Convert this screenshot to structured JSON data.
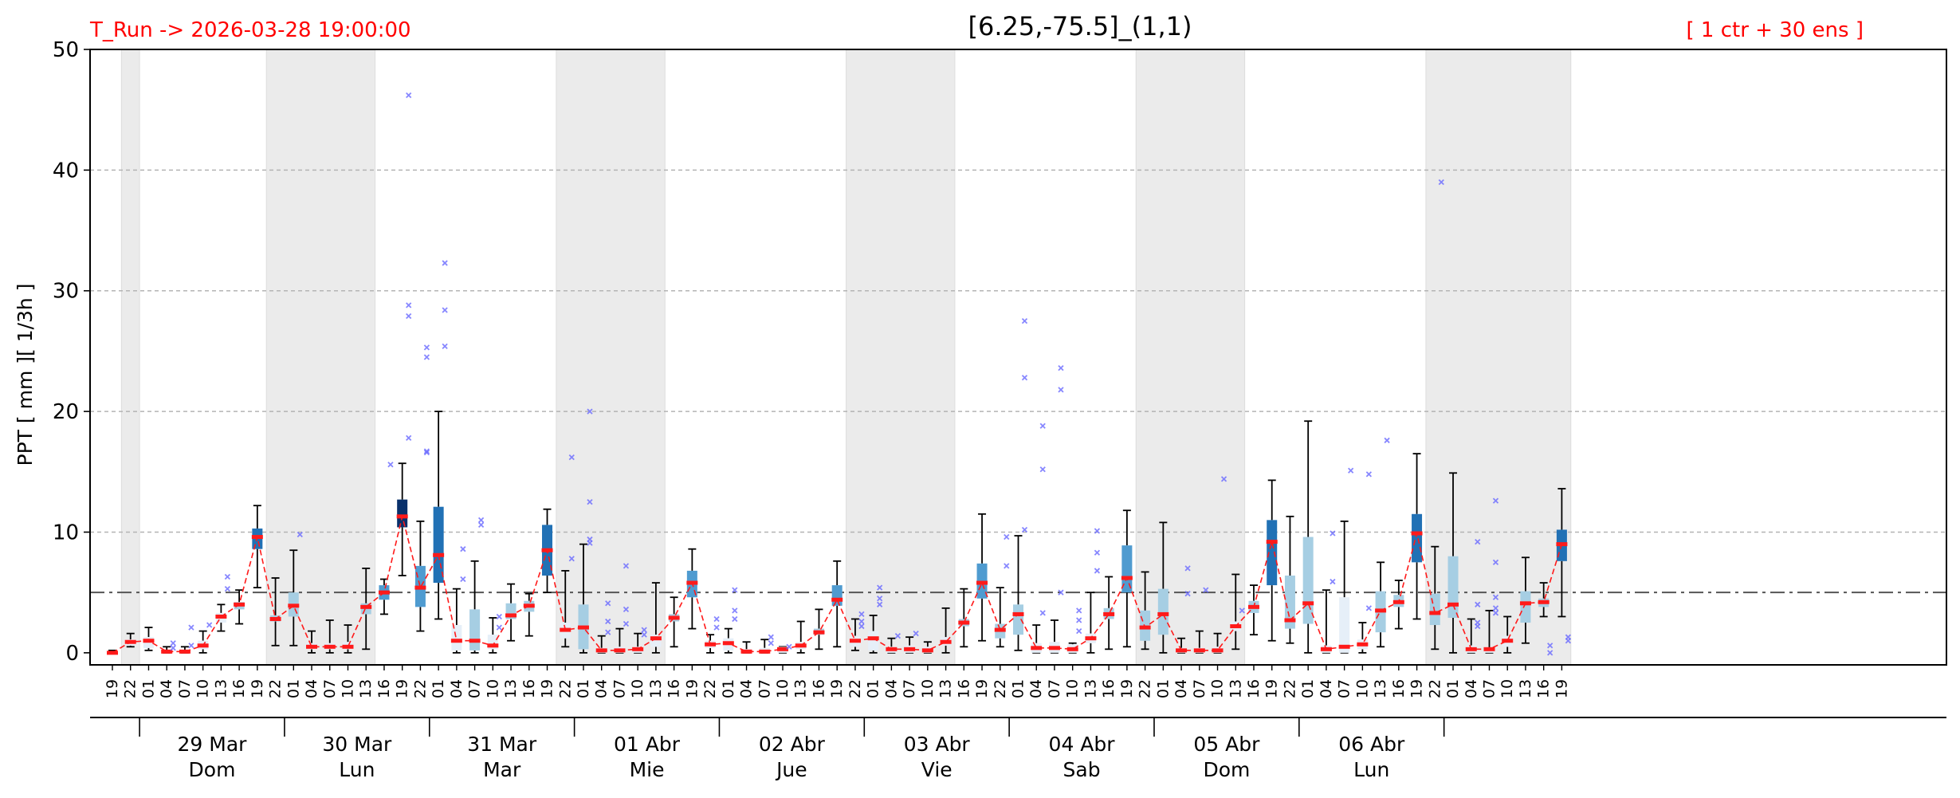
{
  "header": {
    "run_label": "T_Run -> 2026-03-28  19:00:00",
    "title": "[6.25,-75.5]_(1,1)",
    "ensemble_label": "[ 1 ctr + 30 ens ]"
  },
  "colors": {
    "red_text": "#ff0000",
    "median": "#ff1a1a",
    "night_band": "#ebebeb",
    "outlier": "#6a6aff",
    "box_very_light": "#e6eff8",
    "box_light": "#a6cee3",
    "box_medium": "#4f9bd0",
    "box_dark": "#2171b5",
    "box_darkest": "#08306b"
  },
  "chart_data": {
    "type": "box",
    "title": "[6.25,-75.5]_(1,1)",
    "ylabel": "PPT  [ mm ][ 1/3h ]",
    "xlabel": "",
    "ylim": [
      -1,
      50
    ],
    "yticks": [
      0,
      10,
      20,
      30,
      40,
      50
    ],
    "threshold": 5,
    "grid": "horizontal dashed",
    "x_hours": [
      "19",
      "22",
      "01",
      "04",
      "07",
      "10",
      "13",
      "16",
      "19",
      "22",
      "01",
      "04",
      "07",
      "10",
      "13",
      "16",
      "19",
      "22",
      "01",
      "04",
      "07",
      "10",
      "13",
      "16",
      "19",
      "22",
      "01",
      "04",
      "07",
      "10",
      "13",
      "16",
      "19",
      "22",
      "01",
      "04",
      "07",
      "10",
      "13",
      "16",
      "19",
      "22",
      "01",
      "04",
      "07",
      "10",
      "13",
      "16",
      "19",
      "22",
      "01",
      "04",
      "07",
      "10",
      "13",
      "16",
      "19",
      "22",
      "01",
      "04",
      "07",
      "10",
      "13",
      "16",
      "19",
      "22",
      "01",
      "04",
      "07",
      "10",
      "13",
      "16",
      "19",
      "22",
      "01",
      "04",
      "07",
      "10",
      "13",
      "16",
      "19"
    ],
    "days": [
      {
        "date": "29 Mar",
        "weekday": "Dom"
      },
      {
        "date": "30 Mar",
        "weekday": "Lun"
      },
      {
        "date": "31 Mar",
        "weekday": "Mar"
      },
      {
        "date": "01 Abr",
        "weekday": "Mie"
      },
      {
        "date": "02 Abr",
        "weekday": "Jue"
      },
      {
        "date": "03 Abr",
        "weekday": "Vie"
      },
      {
        "date": "04 Abr",
        "weekday": "Sab"
      },
      {
        "date": "05 Abr",
        "weekday": "Dom"
      },
      {
        "date": "06 Abr",
        "weekday": "Lun"
      }
    ],
    "median": [
      0,
      0.9,
      1.0,
      0.1,
      0.1,
      0.6,
      3.0,
      4.0,
      9.6,
      2.8,
      3.9,
      0.5,
      0.5,
      0.5,
      3.8,
      5.0,
      11.3,
      5.4,
      8.1,
      1.0,
      1.0,
      0.6,
      3.1,
      3.9,
      8.5,
      1.9,
      2.1,
      0.2,
      0.2,
      0.3,
      1.2,
      2.9,
      5.8,
      0.7,
      0.8,
      0.1,
      0.1,
      0.3,
      0.6,
      1.7,
      4.4,
      1.0,
      1.2,
      0.3,
      0.3,
      0.2,
      0.9,
      2.5,
      5.8,
      1.9,
      3.2,
      0.4,
      0.4,
      0.3,
      1.2,
      3.2,
      6.2,
      2.1,
      3.2,
      0.2,
      0.2,
      0.2,
      2.2,
      3.8,
      9.2,
      2.7,
      4.1,
      0.3,
      0.5,
      0.7,
      3.5,
      4.2,
      9.9,
      3.3,
      4.0,
      0.3,
      0.3,
      1.0,
      4.1,
      4.2,
      9.0
    ],
    "q1": [
      0,
      0.6,
      0.4,
      0,
      0,
      0.3,
      2.5,
      3.6,
      8.6,
      2.6,
      3.0,
      0.3,
      0.3,
      0.3,
      3.2,
      4.4,
      10.4,
      3.8,
      5.8,
      0.2,
      0.2,
      0.3,
      2.8,
      3.4,
      6.4,
      1.2,
      0.3,
      0,
      0,
      0,
      0.5,
      2.6,
      4.6,
      0.4,
      0.2,
      0,
      0,
      0,
      0.3,
      1.5,
      3.9,
      0.5,
      0.2,
      0,
      0,
      0,
      0.6,
      2.2,
      4.5,
      1.2,
      1.5,
      0,
      0,
      0,
      0.8,
      2.8,
      5.0,
      1.0,
      1.5,
      0,
      0,
      0,
      1.8,
      3.3,
      5.6,
      2.0,
      2.4,
      0,
      0,
      0.3,
      1.7,
      3.8,
      7.5,
      2.3,
      2.9,
      0,
      0,
      0.5,
      2.5,
      3.8,
      7.6
    ],
    "q3": [
      0.1,
      1.1,
      1.3,
      0.2,
      0.2,
      1.0,
      3.3,
      4.2,
      10.3,
      3.1,
      5.0,
      0.8,
      0.8,
      0.9,
      4.1,
      5.6,
      12.7,
      7.2,
      12.1,
      2.3,
      3.6,
      1.5,
      4.1,
      4.3,
      10.6,
      2.5,
      4.0,
      0.4,
      0.5,
      0.5,
      1.5,
      3.2,
      6.8,
      1.0,
      1.2,
      0.3,
      0.4,
      0.5,
      0.9,
      2.0,
      5.6,
      1.4,
      1.8,
      0.5,
      0.6,
      0.5,
      1.3,
      2.8,
      7.4,
      2.4,
      4.0,
      0.8,
      0.9,
      0.7,
      1.6,
      3.7,
      8.9,
      3.5,
      5.3,
      0.4,
      0.4,
      0.5,
      2.6,
      4.3,
      11.0,
      6.4,
      9.6,
      0.6,
      4.6,
      1.1,
      5.1,
      4.8,
      11.5,
      4.9,
      8.0,
      0.6,
      0.4,
      1.4,
      5.1,
      4.5,
      10.2
    ],
    "whisker_low": [
      0,
      0.5,
      0.2,
      0,
      0,
      0,
      1.8,
      2.4,
      5.4,
      0.6,
      0.6,
      0,
      0,
      0,
      0.3,
      3.2,
      6.4,
      1.8,
      2.8,
      0,
      0,
      0,
      1.0,
      1.4,
      5.0,
      0.5,
      0,
      0,
      0,
      0,
      0,
      0.5,
      2.0,
      0,
      0,
      0,
      0,
      0,
      0,
      0.3,
      0.5,
      0.2,
      0,
      0,
      0,
      0,
      0,
      0.5,
      1.0,
      0.5,
      0.2,
      0,
      0,
      0,
      0,
      0.3,
      0.5,
      0.3,
      0,
      0,
      0,
      0,
      0.3,
      1.5,
      1.0,
      0.8,
      0,
      0,
      0,
      0,
      0.5,
      2.0,
      2.8,
      0.3,
      0,
      0,
      0,
      0,
      0.8,
      3.0,
      3.0
    ],
    "whisker_high": [
      0.2,
      1.6,
      2.1,
      0.5,
      0.5,
      1.8,
      4.0,
      5.2,
      12.2,
      6.2,
      8.5,
      1.8,
      2.7,
      2.3,
      7.0,
      6.1,
      15.7,
      10.9,
      20.0,
      5.3,
      7.6,
      2.9,
      5.7,
      4.9,
      11.9,
      6.8,
      9.0,
      1.4,
      2.0,
      1.6,
      5.8,
      4.6,
      8.6,
      1.5,
      2.0,
      0.9,
      1.1,
      0.5,
      2.6,
      3.6,
      7.6,
      2.8,
      3.1,
      1.2,
      1.3,
      0.9,
      3.7,
      5.3,
      11.5,
      5.4,
      9.7,
      2.3,
      2.7,
      0.8,
      5.0,
      6.3,
      11.8,
      6.7,
      10.8,
      1.2,
      1.8,
      1.6,
      6.5,
      5.6,
      14.3,
      11.3,
      19.2,
      5.2,
      10.9,
      2.5,
      7.5,
      6.0,
      16.5,
      8.8,
      14.9,
      2.8,
      3.5,
      3.0,
      7.9,
      5.8,
      13.6
    ],
    "box_shade": [
      0,
      0,
      0,
      0,
      0,
      0,
      0,
      1,
      3,
      1,
      1,
      0,
      0,
      0,
      1,
      2,
      4,
      2,
      3,
      0,
      1,
      0,
      1,
      1,
      3,
      0,
      1,
      0,
      0,
      0,
      0,
      1,
      2,
      0,
      0,
      0,
      0,
      0,
      0,
      1,
      2,
      0,
      0,
      0,
      0,
      0,
      0,
      1,
      2,
      1,
      1,
      0,
      0,
      0,
      0,
      1,
      2,
      1,
      1,
      0,
      0,
      0,
      0,
      1,
      3,
      1,
      1,
      0,
      0,
      0,
      1,
      1,
      3,
      1,
      1,
      0,
      0,
      0,
      1,
      1,
      3
    ],
    "outliers": [
      {
        "i": 3,
        "v": 0.8
      },
      {
        "i": 3,
        "v": 0.4
      },
      {
        "i": 4,
        "v": 2.1
      },
      {
        "i": 4,
        "v": 0.6
      },
      {
        "i": 5,
        "v": 2.3
      },
      {
        "i": 6,
        "v": 6.3
      },
      {
        "i": 6,
        "v": 5.3
      },
      {
        "i": 10,
        "v": 9.8
      },
      {
        "i": 15,
        "v": 15.6
      },
      {
        "i": 16,
        "v": 46.2
      },
      {
        "i": 16,
        "v": 28.8
      },
      {
        "i": 16,
        "v": 27.9
      },
      {
        "i": 16,
        "v": 17.8
      },
      {
        "i": 17,
        "v": 25.3
      },
      {
        "i": 17,
        "v": 24.5
      },
      {
        "i": 17,
        "v": 16.7
      },
      {
        "i": 17,
        "v": 16.6
      },
      {
        "i": 18,
        "v": 32.3
      },
      {
        "i": 18,
        "v": 28.4
      },
      {
        "i": 18,
        "v": 25.4
      },
      {
        "i": 19,
        "v": 8.6
      },
      {
        "i": 19,
        "v": 6.1
      },
      {
        "i": 20,
        "v": 11.0
      },
      {
        "i": 20,
        "v": 10.6
      },
      {
        "i": 21,
        "v": 3.0
      },
      {
        "i": 21,
        "v": 2.1
      },
      {
        "i": 25,
        "v": 16.2
      },
      {
        "i": 25,
        "v": 7.8
      },
      {
        "i": 26,
        "v": 20.0
      },
      {
        "i": 26,
        "v": 12.5
      },
      {
        "i": 26,
        "v": 9.4
      },
      {
        "i": 26,
        "v": 9.1
      },
      {
        "i": 27,
        "v": 4.1
      },
      {
        "i": 27,
        "v": 2.6
      },
      {
        "i": 27,
        "v": 1.7
      },
      {
        "i": 28,
        "v": 7.2
      },
      {
        "i": 28,
        "v": 3.6
      },
      {
        "i": 28,
        "v": 2.4
      },
      {
        "i": 29,
        "v": 1.9
      },
      {
        "i": 29,
        "v": 1.5
      },
      {
        "i": 33,
        "v": 2.8
      },
      {
        "i": 33,
        "v": 2.1
      },
      {
        "i": 34,
        "v": 5.2
      },
      {
        "i": 34,
        "v": 3.5
      },
      {
        "i": 34,
        "v": 2.8
      },
      {
        "i": 36,
        "v": 1.3
      },
      {
        "i": 36,
        "v": 0.8
      },
      {
        "i": 37,
        "v": 0.5
      },
      {
        "i": 41,
        "v": 3.2
      },
      {
        "i": 41,
        "v": 2.6
      },
      {
        "i": 41,
        "v": 2.2
      },
      {
        "i": 42,
        "v": 5.4
      },
      {
        "i": 42,
        "v": 4.5
      },
      {
        "i": 42,
        "v": 4.0
      },
      {
        "i": 43,
        "v": 1.4
      },
      {
        "i": 44,
        "v": 1.6
      },
      {
        "i": 49,
        "v": 9.6
      },
      {
        "i": 49,
        "v": 7.2
      },
      {
        "i": 50,
        "v": 27.5
      },
      {
        "i": 50,
        "v": 22.8
      },
      {
        "i": 50,
        "v": 10.2
      },
      {
        "i": 51,
        "v": 18.8
      },
      {
        "i": 51,
        "v": 15.2
      },
      {
        "i": 51,
        "v": 3.3
      },
      {
        "i": 52,
        "v": 23.6
      },
      {
        "i": 52,
        "v": 21.8
      },
      {
        "i": 52,
        "v": 5.0
      },
      {
        "i": 53,
        "v": 3.5
      },
      {
        "i": 53,
        "v": 2.7
      },
      {
        "i": 53,
        "v": 1.8
      },
      {
        "i": 54,
        "v": 10.1
      },
      {
        "i": 54,
        "v": 8.3
      },
      {
        "i": 54,
        "v": 6.8
      },
      {
        "i": 59,
        "v": 7.0
      },
      {
        "i": 59,
        "v": 4.9
      },
      {
        "i": 60,
        "v": 5.2
      },
      {
        "i": 61,
        "v": 14.4
      },
      {
        "i": 62,
        "v": 3.5
      },
      {
        "i": 67,
        "v": 9.9
      },
      {
        "i": 67,
        "v": 5.9
      },
      {
        "i": 68,
        "v": 15.1
      },
      {
        "i": 69,
        "v": 14.8
      },
      {
        "i": 69,
        "v": 3.7
      },
      {
        "i": 70,
        "v": 17.6
      },
      {
        "i": 73,
        "v": 39.0
      },
      {
        "i": 75,
        "v": 9.2
      },
      {
        "i": 75,
        "v": 4.0
      },
      {
        "i": 75,
        "v": 2.5
      },
      {
        "i": 75,
        "v": 2.2
      },
      {
        "i": 76,
        "v": 12.6
      },
      {
        "i": 76,
        "v": 7.5
      },
      {
        "i": 76,
        "v": 4.6
      },
      {
        "i": 76,
        "v": 3.7
      },
      {
        "i": 76,
        "v": 3.3
      },
      {
        "i": 79,
        "v": 0.6
      },
      {
        "i": 79,
        "v": 0
      },
      {
        "i": 80,
        "v": 1.3
      },
      {
        "i": 80,
        "v": 1.0
      }
    ]
  }
}
